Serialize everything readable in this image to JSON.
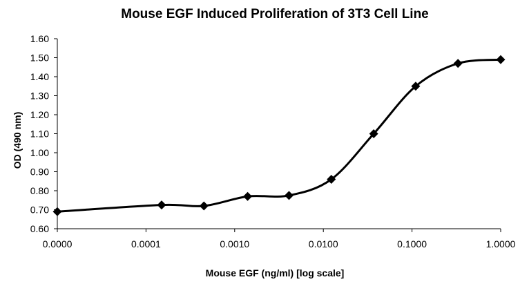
{
  "chart_data": {
    "type": "line",
    "title": "Mouse EGF Induced Proliferation of 3T3 Cell Line",
    "xlabel": "Mouse EGF (ng/ml) [log scale]",
    "ylabel": "OD (490 nm)",
    "x_scale": "log",
    "xlim": [
      1e-05,
      1
    ],
    "ylim": [
      0.6,
      1.6
    ],
    "x_tick_values": [
      1e-05,
      0.0001,
      0.001,
      0.01,
      0.1,
      1
    ],
    "x_tick_labels": [
      "0.0000",
      "0.0001",
      "0.0010",
      "0.0100",
      "0.1000",
      "1.0000"
    ],
    "y_tick_values": [
      0.6,
      0.7,
      0.8,
      0.9,
      1.0,
      1.1,
      1.2,
      1.3,
      1.4,
      1.5,
      1.6
    ],
    "y_tick_labels": [
      "0.60",
      "0.70",
      "0.80",
      "0.90",
      "1.00",
      "1.10",
      "1.20",
      "1.30",
      "1.40",
      "1.50",
      "1.60"
    ],
    "grid": false,
    "legend": "none",
    "marker": "diamond",
    "line_color": "#000000",
    "series": [
      {
        "x": [
          1e-05,
          0.00015,
          0.00045,
          0.0014,
          0.0041,
          0.0123,
          0.037,
          0.11,
          0.33,
          1.0
        ],
        "y": [
          0.69,
          0.725,
          0.72,
          0.77,
          0.775,
          0.86,
          1.1,
          1.35,
          1.47,
          1.49
        ]
      }
    ]
  }
}
